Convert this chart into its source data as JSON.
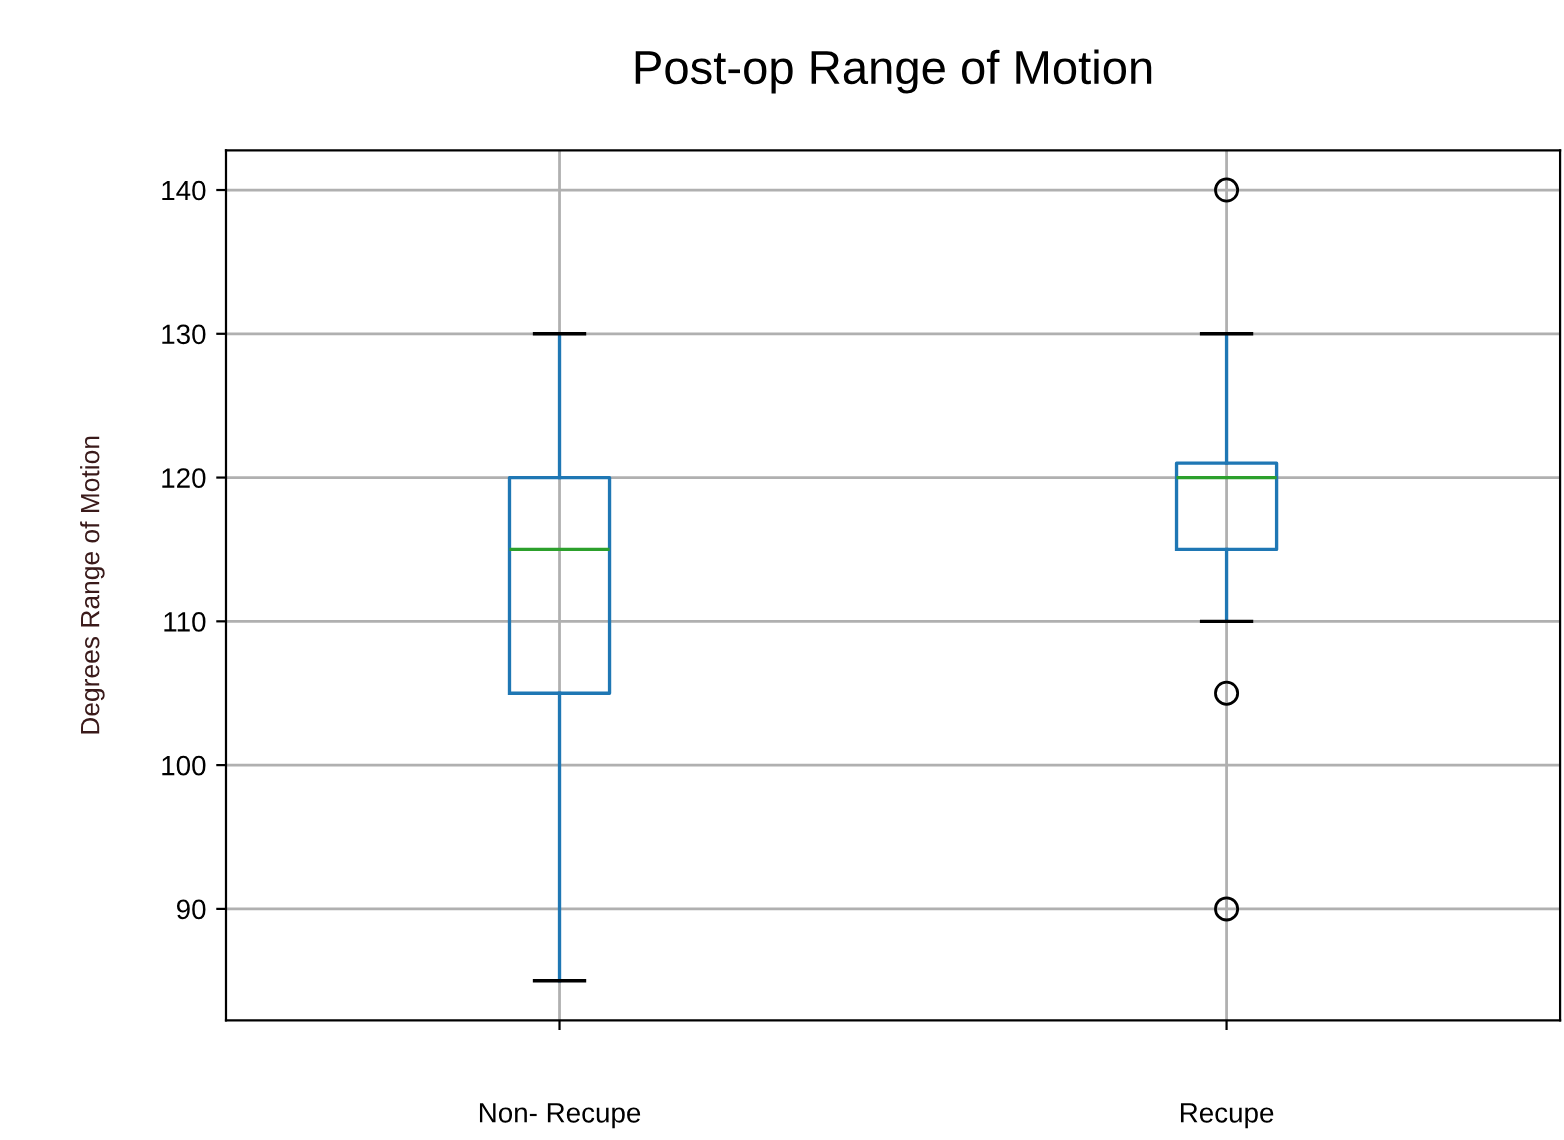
{
  "chart_data": {
    "type": "box",
    "title": "Post-op Range of Motion",
    "ylabel": "Degrees Range of Motion",
    "categories": [
      "Non- Recupe",
      "Recupe"
    ],
    "boxes": [
      {
        "low": 85,
        "q1": 105,
        "median": 115,
        "q3": 120,
        "high": 130
      },
      {
        "low": 110,
        "q1": 115,
        "median": 120,
        "q3": 121,
        "high": 130,
        "outliers": [
          140,
          105,
          90
        ]
      }
    ],
    "ylim": [
      82.25,
      142.75
    ],
    "yticks": [
      90,
      100,
      110,
      120,
      130,
      140
    ],
    "grid": true,
    "color": "#1f77b4"
  }
}
